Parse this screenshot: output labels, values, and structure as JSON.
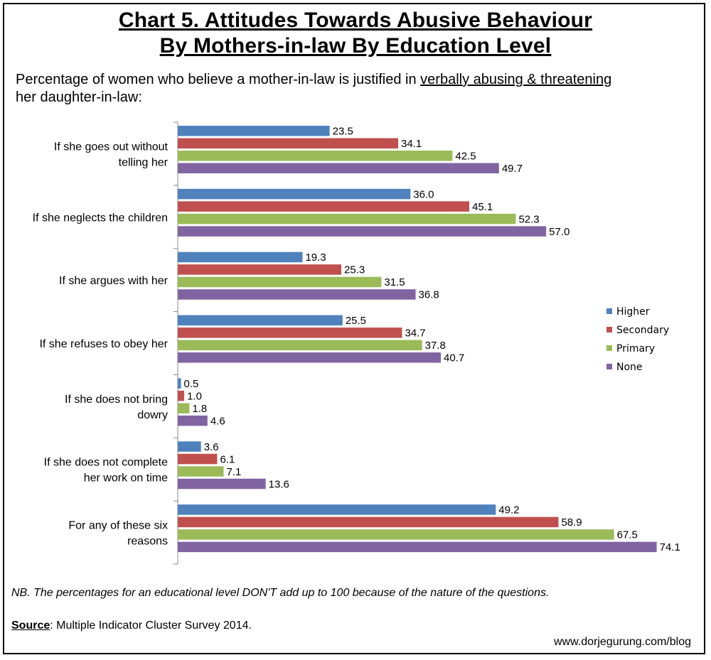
{
  "title_line1": "Chart 5. Attitudes Towards Abusive Behaviour",
  "title_line2": "By Mothers-in-law By Education Level",
  "subtitle_prefix": "Percentage of women who believe a mother-in-law is justified in ",
  "subtitle_emphasis": "verbally abusing & threatening",
  "subtitle_suffix": "her daughter-in-law:",
  "note": "NB. The percentages for an educational level DON'T add up to 100 because of the nature of the questions.",
  "source_label": "Source",
  "source_text": ": Multiple Indicator Cluster Survey 2014.",
  "website": "www.dorjegurung.com/blog",
  "chart_data": {
    "type": "bar",
    "orientation": "horizontal",
    "categories": [
      [
        "If she goes out without",
        "telling her"
      ],
      [
        "If she neglects the children"
      ],
      [
        "If she argues with her"
      ],
      [
        "If she refuses to obey her"
      ],
      [
        "If she does not bring",
        "dowry"
      ],
      [
        "If she does not complete",
        "her work on time"
      ],
      [
        "For any of these six",
        "reasons"
      ]
    ],
    "series": [
      {
        "name": "Higher",
        "color": "#4f81bd",
        "values": [
          23.5,
          36.0,
          19.3,
          25.5,
          0.5,
          3.6,
          49.2
        ]
      },
      {
        "name": "Secondary",
        "color": "#c0504d",
        "values": [
          34.1,
          45.1,
          25.3,
          34.7,
          1.0,
          6.1,
          58.9
        ]
      },
      {
        "name": "Primary",
        "color": "#9bbb59",
        "values": [
          42.5,
          52.3,
          31.5,
          37.8,
          1.8,
          7.1,
          67.5
        ]
      },
      {
        "name": "None",
        "color": "#8064a2",
        "values": [
          49.7,
          57.0,
          36.8,
          40.7,
          4.6,
          13.6,
          74.1
        ]
      }
    ],
    "xlim": [
      0,
      77
    ],
    "legend_position": "right",
    "grid": false
  }
}
